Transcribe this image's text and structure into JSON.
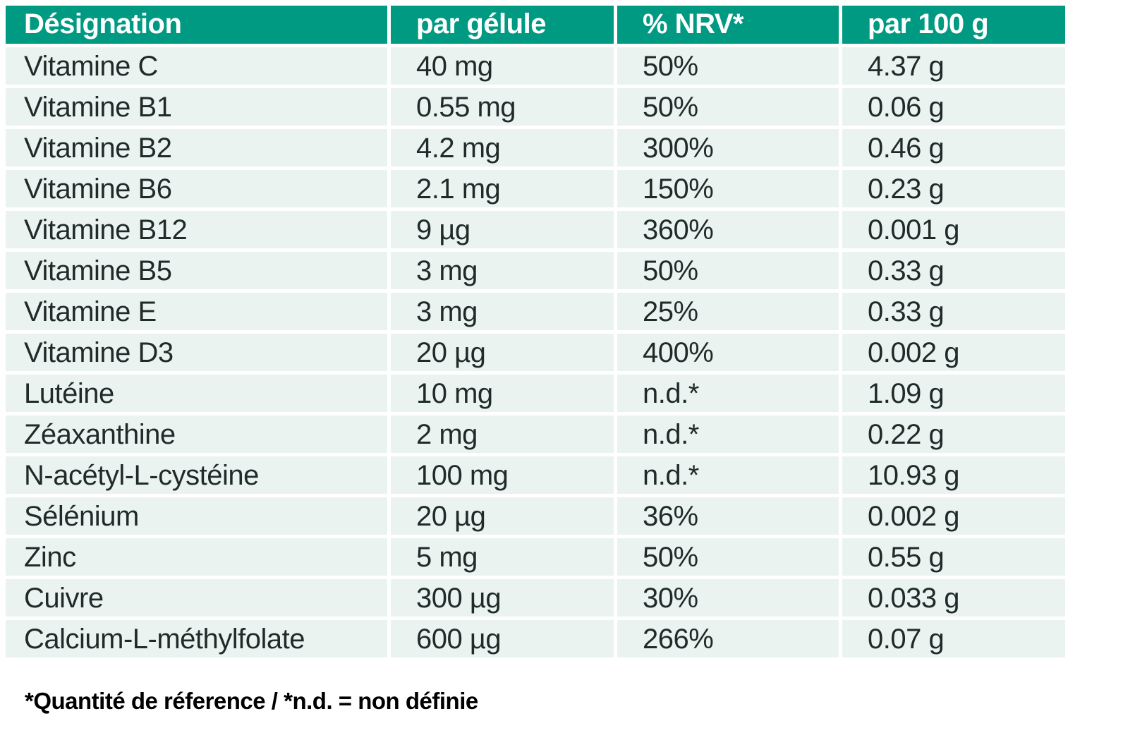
{
  "table": {
    "columns": [
      "Désignation",
      "par gélule",
      "% NRV*",
      "par 100 g"
    ],
    "rows": [
      [
        "Vitamine C",
        "40 mg",
        "50%",
        "4.37 g"
      ],
      [
        "Vitamine B1",
        "0.55 mg",
        "50%",
        "0.06 g"
      ],
      [
        "Vitamine B2",
        "4.2 mg",
        "300%",
        "0.46 g"
      ],
      [
        "Vitamine B6",
        "2.1 mg",
        "150%",
        "0.23 g"
      ],
      [
        "Vitamine B12",
        "9 µg",
        "360%",
        "0.001 g"
      ],
      [
        "Vitamine B5",
        "3 mg",
        "50%",
        "0.33 g"
      ],
      [
        "Vitamine E",
        "3 mg",
        "25%",
        "0.33 g"
      ],
      [
        "Vitamine D3",
        "20 µg",
        "400%",
        "0.002 g"
      ],
      [
        "Lutéine",
        "10 mg",
        "n.d.*",
        "1.09 g"
      ],
      [
        "Zéaxanthine",
        "2 mg",
        "n.d.*",
        "0.22 g"
      ],
      [
        "N-acétyl-L-cystéine",
        "100 mg",
        "n.d.*",
        "10.93 g"
      ],
      [
        "Sélénium",
        "20 µg",
        "36%",
        "0.002 g"
      ],
      [
        "Zinc",
        "5 mg",
        "50%",
        "0.55 g"
      ],
      [
        "Cuivre",
        "300 µg",
        "30%",
        "0.033 g"
      ],
      [
        "Calcium-L-méthylfolate",
        "600 µg",
        "266%",
        "0.07 g"
      ]
    ],
    "footnote": "*Quantité de réference / *n.d. = non définie"
  },
  "colors": {
    "header_bg": "#009A83",
    "header_text": "#FFFFFF",
    "row_bg": "#EBF3F1",
    "body_text": "#1F2B2A",
    "footnote_text": "#000000",
    "gridline": "#FFFFFF"
  }
}
